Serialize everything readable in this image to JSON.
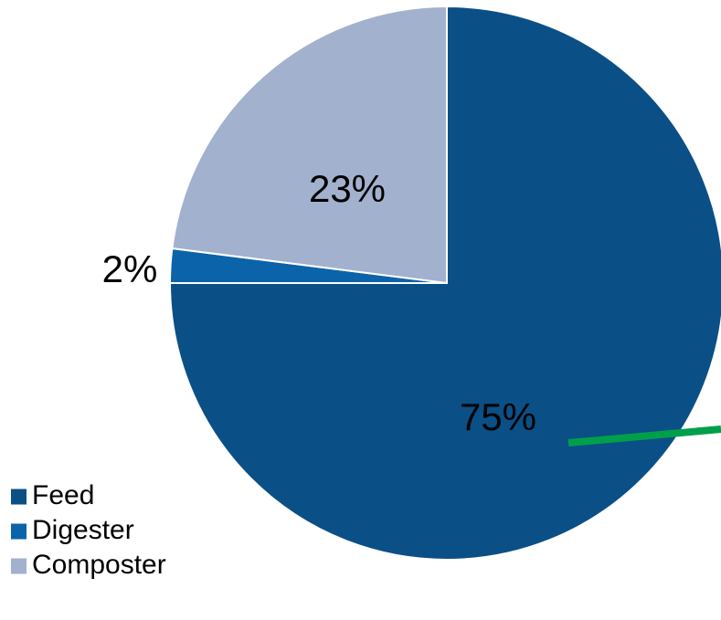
{
  "chart_data": {
    "type": "pie",
    "slices": [
      {
        "name": "Feed",
        "value": 75,
        "label": "75%",
        "color": "#0b4f87"
      },
      {
        "name": "Digester",
        "value": 2,
        "label": "2%",
        "color": "#0b63aa"
      },
      {
        "name": "Composter",
        "value": 23,
        "label": "23%",
        "color": "#a2b1cd"
      }
    ],
    "start_at": "top",
    "direction": "clockwise",
    "legend": {
      "placement": "bottom-left",
      "entries": [
        "Feed",
        "Digester",
        "Composter"
      ]
    },
    "annotation": {
      "type": "line",
      "color": "#00a04b",
      "points": [
        [
          0,
          -0.5
        ],
        [
          1.02,
          -0.55
        ]
      ]
    }
  }
}
